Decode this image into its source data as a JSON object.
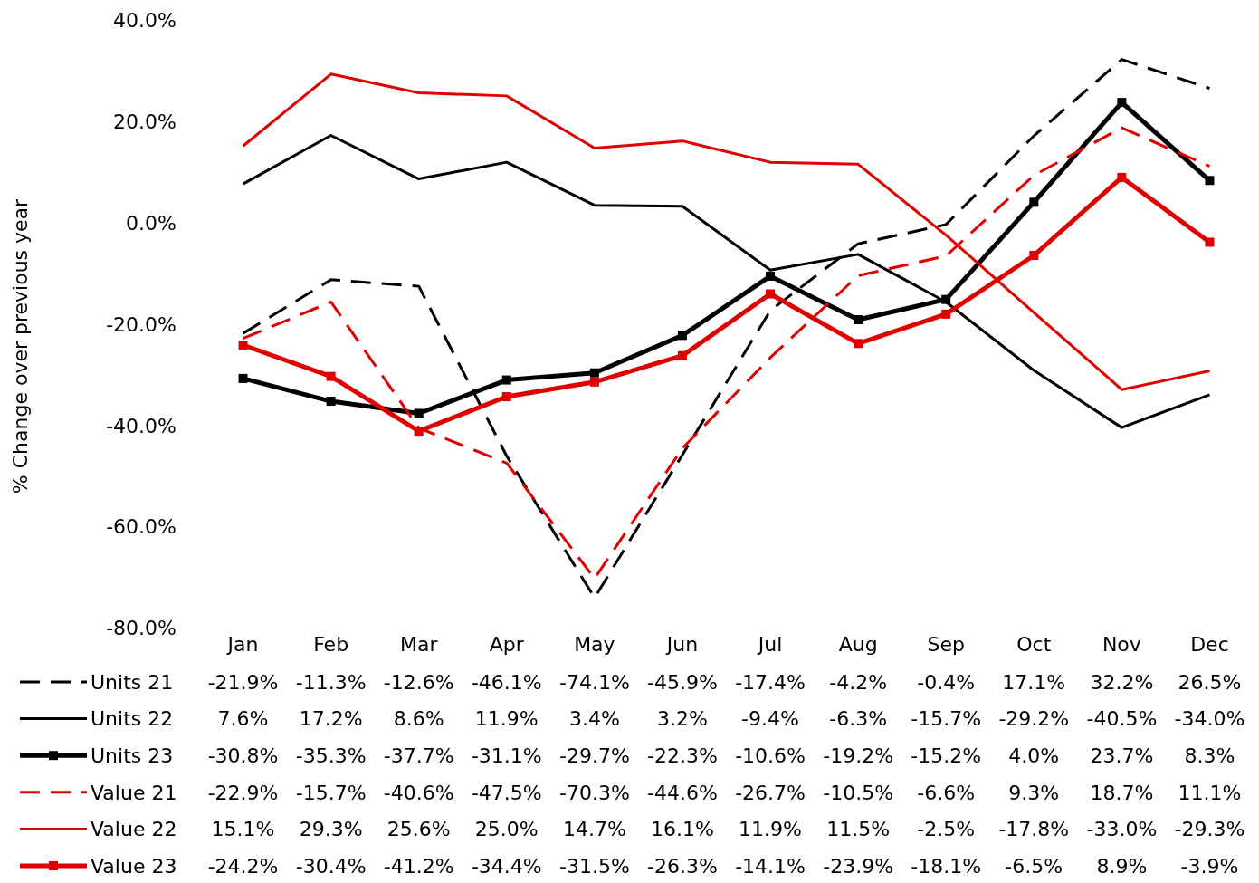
{
  "chart_data": {
    "type": "line",
    "ylabel": "% Change over previous year",
    "categories": [
      "Jan",
      "Feb",
      "Mar",
      "Apr",
      "May",
      "Jun",
      "Jul",
      "Aug",
      "Sep",
      "Oct",
      "Nov",
      "Dec"
    ],
    "ylim": [
      -80,
      40
    ],
    "yticks": [
      {
        "value": 40,
        "label": "40.0%"
      },
      {
        "value": 20,
        "label": "20.0%"
      },
      {
        "value": 0,
        "label": "0.0%"
      },
      {
        "value": -20,
        "label": "-20.0%"
      },
      {
        "value": -40,
        "label": "-40.0%"
      },
      {
        "value": -60,
        "label": "-60.0%"
      },
      {
        "value": -80,
        "label": "-80.0%"
      }
    ],
    "grid": false,
    "legend": "bottom",
    "series": [
      {
        "name": "Units 21",
        "color": "#000000",
        "line_style": "dashed",
        "marker": "none",
        "values": [
          -21.9,
          -11.3,
          -12.6,
          -46.1,
          -74.1,
          -45.9,
          -17.4,
          -4.2,
          -0.4,
          17.1,
          32.2,
          26.5
        ],
        "value_labels": [
          "-21.9%",
          "-11.3%",
          "-12.6%",
          "-46.1%",
          "-74.1%",
          "-45.9%",
          "-17.4%",
          "-4.2%",
          "-0.4%",
          "17.1%",
          "32.2%",
          "26.5%"
        ]
      },
      {
        "name": "Units 22",
        "color": "#000000",
        "line_style": "solid",
        "marker": "none",
        "values": [
          7.6,
          17.2,
          8.6,
          11.9,
          3.4,
          3.2,
          -9.4,
          -6.3,
          -15.7,
          -29.2,
          -40.5,
          -34.0
        ],
        "value_labels": [
          "7.6%",
          "17.2%",
          "8.6%",
          "11.9%",
          "3.4%",
          "3.2%",
          "-9.4%",
          "-6.3%",
          "-15.7%",
          "-29.2%",
          "-40.5%",
          "-34.0%"
        ]
      },
      {
        "name": "Units 23",
        "color": "#000000",
        "line_style": "solid",
        "marker": "square",
        "values": [
          -30.8,
          -35.3,
          -37.7,
          -31.1,
          -29.7,
          -22.3,
          -10.6,
          -19.2,
          -15.2,
          4.0,
          23.7,
          8.3
        ],
        "value_labels": [
          "-30.8%",
          "-35.3%",
          "-37.7%",
          "-31.1%",
          "-29.7%",
          "-22.3%",
          "-10.6%",
          "-19.2%",
          "-15.2%",
          "4.0%",
          "23.7%",
          "8.3%"
        ]
      },
      {
        "name": "Value 21",
        "color": "#e00000",
        "line_style": "dashed",
        "marker": "none",
        "values": [
          -22.9,
          -15.7,
          -40.6,
          -47.5,
          -70.3,
          -44.6,
          -26.7,
          -10.5,
          -6.6,
          9.3,
          18.7,
          11.1
        ],
        "value_labels": [
          "-22.9%",
          "-15.7%",
          "-40.6%",
          "-47.5%",
          "-70.3%",
          "-44.6%",
          "-26.7%",
          "-10.5%",
          "-6.6%",
          "9.3%",
          "18.7%",
          "11.1%"
        ]
      },
      {
        "name": "Value 22",
        "color": "#e00000",
        "line_style": "solid",
        "marker": "none",
        "values": [
          15.1,
          29.3,
          25.6,
          25.0,
          14.7,
          16.1,
          11.9,
          11.5,
          -2.5,
          -17.8,
          -33.0,
          -29.3
        ],
        "value_labels": [
          "15.1%",
          "29.3%",
          "25.6%",
          "25.0%",
          "14.7%",
          "16.1%",
          "11.9%",
          "11.5%",
          "-2.5%",
          "-17.8%",
          "-33.0%",
          "-29.3%"
        ]
      },
      {
        "name": "Value 23",
        "color": "#e00000",
        "line_style": "solid",
        "marker": "square",
        "values": [
          -24.2,
          -30.4,
          -41.2,
          -34.4,
          -31.5,
          -26.3,
          -14.1,
          -23.9,
          -18.1,
          -6.5,
          8.9,
          -3.9
        ],
        "value_labels": [
          "-24.2%",
          "-30.4%",
          "-41.2%",
          "-34.4%",
          "-31.5%",
          "-26.3%",
          "-14.1%",
          "-23.9%",
          "-18.1%",
          "-6.5%",
          "8.9%",
          "-3.9%"
        ]
      }
    ]
  }
}
